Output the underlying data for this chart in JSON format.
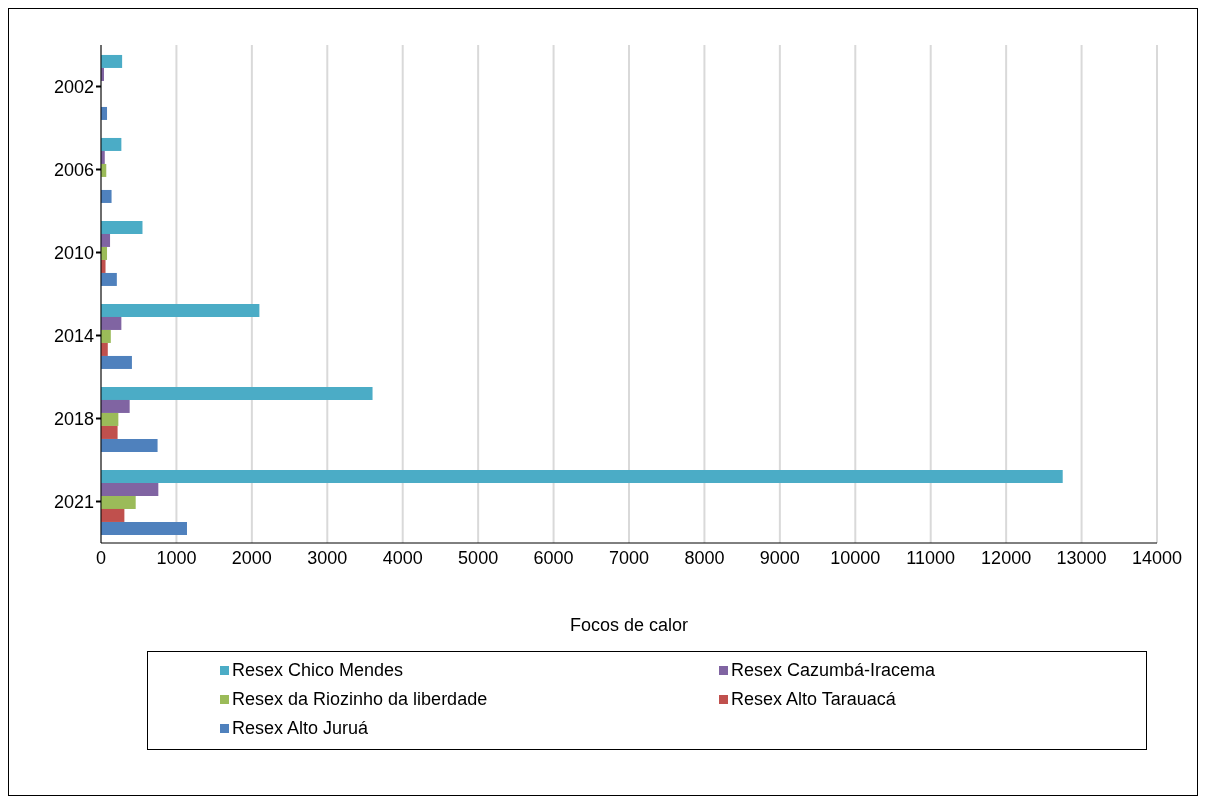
{
  "chart_data": {
    "type": "bar",
    "orientation": "horizontal",
    "xlabel": "Focos de calor",
    "categories": [
      "2002",
      "2006",
      "2010",
      "2014",
      "2018",
      "2021"
    ],
    "series": [
      {
        "name": "Resex Chico Mendes",
        "color": "#4bacc6",
        "values": [
          280,
          270,
          550,
          2100,
          3600,
          12750
        ]
      },
      {
        "name": "Resex Cazumbá-Iracema",
        "color": "#8064a2",
        "values": [
          40,
          50,
          120,
          270,
          380,
          760
        ]
      },
      {
        "name": "Resex da Riozinho da liberdade",
        "color": "#9bbb59",
        "values": [
          null,
          70,
          80,
          130,
          230,
          460
        ]
      },
      {
        "name": "Resex Alto Tarauacá",
        "color": "#c0504d",
        "values": [
          null,
          null,
          60,
          90,
          220,
          310
        ]
      },
      {
        "name": "Resex Alto Juruá",
        "color": "#4f81bd",
        "values": [
          80,
          140,
          210,
          410,
          750,
          1140
        ]
      }
    ],
    "xlim": [
      0,
      14000
    ],
    "xticks": [
      0,
      1000,
      2000,
      3000,
      4000,
      5000,
      6000,
      7000,
      8000,
      9000,
      10000,
      11000,
      12000,
      13000,
      14000
    ],
    "grid": "x",
    "legend": "bottom"
  }
}
